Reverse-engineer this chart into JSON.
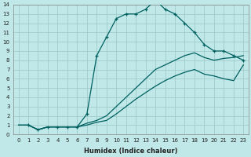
{
  "xlabel": "Humidex (Indice chaleur)",
  "bg_color": "#c0e8e8",
  "grid_color": "#a0cccc",
  "line_color": "#006060",
  "xlim": [
    -0.5,
    23.5
  ],
  "ylim": [
    0,
    14
  ],
  "xticks": [
    0,
    1,
    2,
    3,
    4,
    5,
    6,
    7,
    8,
    9,
    10,
    11,
    12,
    13,
    14,
    15,
    16,
    17,
    18,
    19,
    20,
    21,
    22,
    23
  ],
  "yticks": [
    0,
    1,
    2,
    3,
    4,
    5,
    6,
    7,
    8,
    9,
    10,
    11,
    12,
    13,
    14
  ],
  "curve_top_x": [
    1,
    2,
    3,
    4,
    5,
    6,
    7,
    8,
    9,
    10,
    11,
    12,
    13,
    14,
    15,
    16,
    17,
    18,
    19,
    20,
    21,
    22,
    23
  ],
  "curve_top_y": [
    1,
    0.5,
    0.8,
    0.8,
    0.8,
    0.8,
    2.2,
    8.5,
    10.5,
    12.5,
    13,
    13,
    13.5,
    14.5,
    13.5,
    13,
    12,
    11,
    9.7,
    9,
    9,
    8.5,
    8
  ],
  "curve_mid_x": [
    0,
    1,
    2,
    3,
    4,
    5,
    6,
    7,
    8,
    9,
    10,
    11,
    12,
    13,
    14,
    15,
    16,
    17,
    18,
    19,
    20,
    21,
    22,
    23
  ],
  "curve_mid_y": [
    1,
    1,
    0.5,
    0.8,
    0.8,
    0.8,
    0.8,
    1.2,
    1.5,
    2.0,
    3.0,
    4.0,
    5.0,
    6.0,
    7.0,
    7.5,
    8.0,
    8.5,
    8.8,
    8.3,
    8.0,
    8.2,
    8.3,
    8.5
  ],
  "curve_low_x": [
    0,
    1,
    2,
    3,
    4,
    5,
    6,
    7,
    8,
    9,
    10,
    11,
    12,
    13,
    14,
    15,
    16,
    17,
    18,
    19,
    20,
    21,
    22,
    23
  ],
  "curve_low_y": [
    1,
    1,
    0.5,
    0.8,
    0.8,
    0.8,
    0.8,
    1.0,
    1.3,
    1.5,
    2.2,
    3.0,
    3.8,
    4.5,
    5.2,
    5.8,
    6.3,
    6.7,
    7.0,
    6.5,
    6.3,
    6.0,
    5.8,
    7.5
  ]
}
